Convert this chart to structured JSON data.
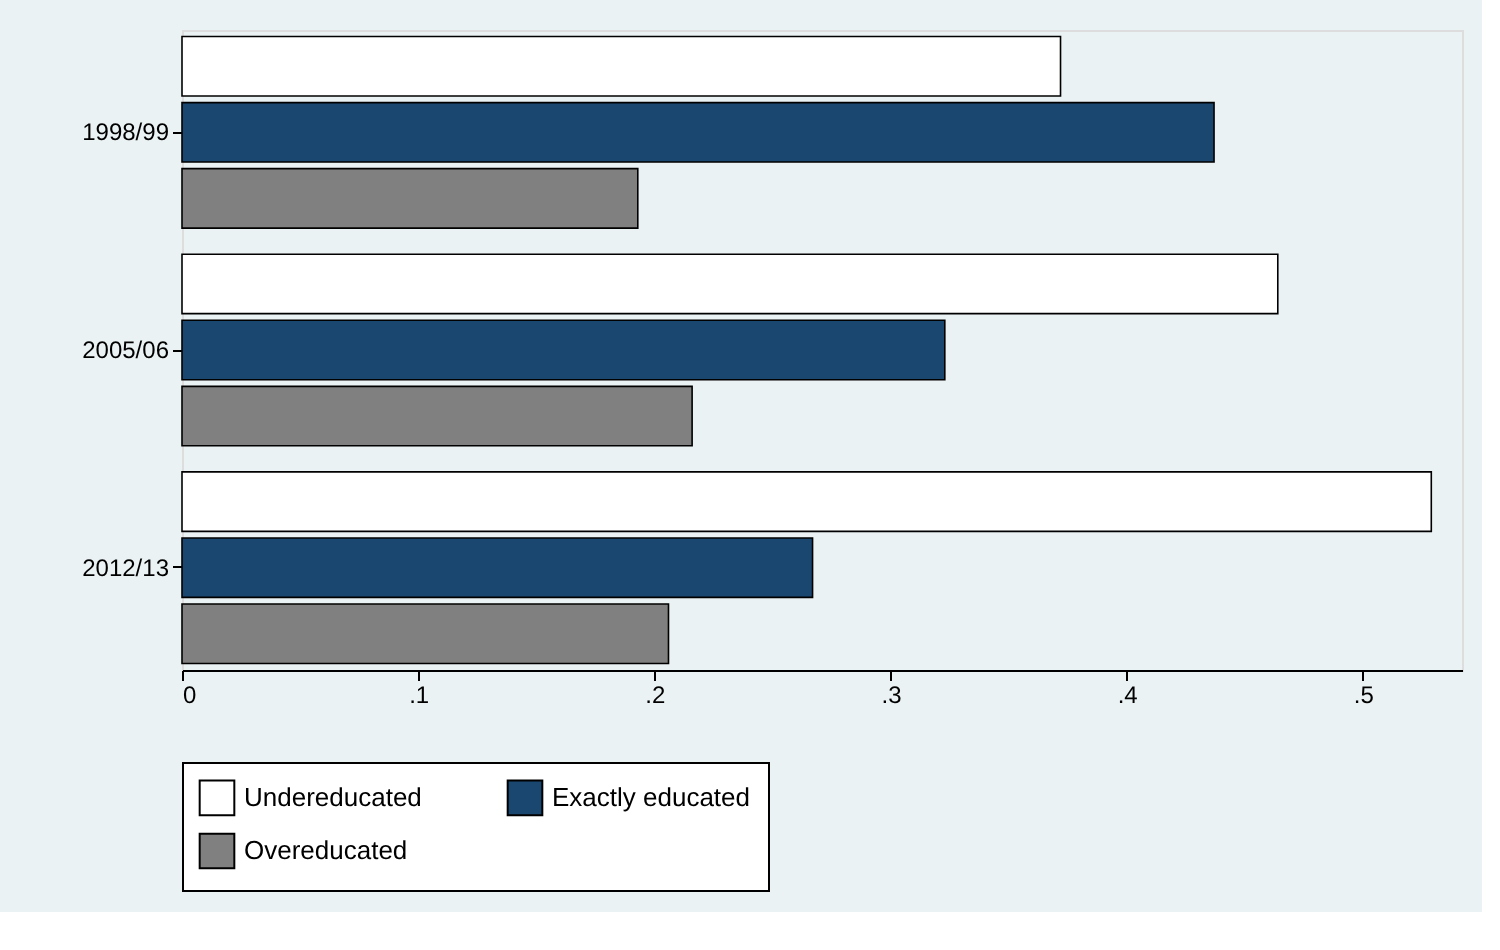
{
  "chart_data": {
    "type": "bar",
    "orientation": "horizontal",
    "categories": [
      "1998/99",
      "2005/06",
      "2012/13"
    ],
    "series": [
      {
        "name": "Undereducated",
        "color": "#ffffff",
        "values": [
          0.372,
          0.464,
          0.529
        ]
      },
      {
        "name": "Exactly educated",
        "color": "#1a476f",
        "values": [
          0.437,
          0.323,
          0.267
        ]
      },
      {
        "name": "Overeducated",
        "color": "#808080",
        "values": [
          0.193,
          0.216,
          0.206
        ]
      }
    ],
    "xlim": [
      0,
      0.542
    ],
    "xticks": [
      0,
      {
        "value": 0.1,
        "label": ".1"
      },
      {
        "value": 0.2,
        "label": ".2"
      },
      {
        "value": 0.3,
        "label": ".3"
      },
      {
        "value": 0.4,
        "label": ".4"
      },
      {
        "value": 0.5,
        "label": ".5"
      }
    ],
    "grid": false,
    "legend": "bottom"
  }
}
